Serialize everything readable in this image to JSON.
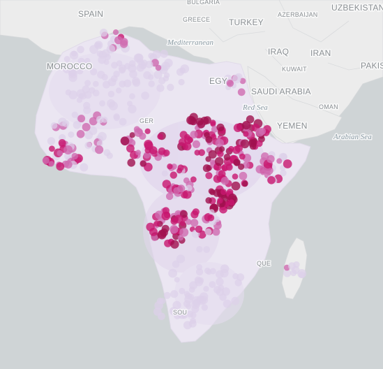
{
  "map": {
    "country_labels": [
      {
        "id": "spain",
        "text": "SPAIN"
      },
      {
        "id": "bulgaria",
        "text": "BULGARIA"
      },
      {
        "id": "greece",
        "text": "GREECE"
      },
      {
        "id": "turkey",
        "text": "TURKEY"
      },
      {
        "id": "azerbaijan",
        "text": "AZERBAIJAN"
      },
      {
        "id": "uzbekistan",
        "text": "UZBEKISTAN"
      },
      {
        "id": "iraq",
        "text": "IRAQ"
      },
      {
        "id": "iran",
        "text": "IRAN"
      },
      {
        "id": "pakistan",
        "text": "PAKIS"
      },
      {
        "id": "kuwait",
        "text": "KUWAIT"
      },
      {
        "id": "saudi",
        "text": "SAUDI ARABIA"
      },
      {
        "id": "oman",
        "text": "OMAN"
      },
      {
        "id": "yemen",
        "text": "YEMEN"
      },
      {
        "id": "morocco",
        "text": "MOROCCO"
      },
      {
        "id": "egypt",
        "text": "EGY"
      },
      {
        "id": "niger",
        "text": "GER"
      },
      {
        "id": "mozambique",
        "text": "QUE"
      },
      {
        "id": "south-africa",
        "text": "SOU"
      }
    ],
    "sea_labels": [
      {
        "id": "mediterranean",
        "text": "Mediterranean"
      },
      {
        "id": "red-sea",
        "text": "Red Sea"
      },
      {
        "id": "arabian-sea",
        "text": "Arabian Sea"
      }
    ],
    "colors": {
      "water": "#cfd4d6",
      "land": "#ececec",
      "africa_base": "#ebe6f2",
      "low": "#ddd0ea",
      "mid": "#d06cb0",
      "high": "#c8166f",
      "max": "#a0104e"
    }
  }
}
